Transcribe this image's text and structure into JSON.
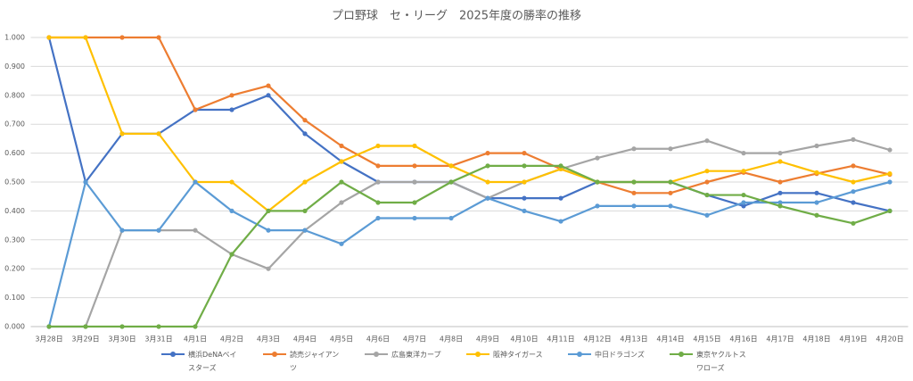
{
  "chart_data": {
    "type": "line",
    "title": "プロ野球　セ・リーグ　2025年度の勝率の推移",
    "categories": [
      "3月28日",
      "3月29日",
      "3月30日",
      "3月31日",
      "4月1日",
      "4月2日",
      "4月3日",
      "4月4日",
      "4月5日",
      "4月6日",
      "4月7日",
      "4月8日",
      "4月9日",
      "4月10日",
      "4月11日",
      "4月12日",
      "4月13日",
      "4月14日",
      "4月15日",
      "4月16日",
      "4月17日",
      "4月18日",
      "4月19日",
      "4月20日"
    ],
    "series": [
      {
        "name": "横浜DeNAベイスターズ",
        "color": "#4472c4",
        "values": [
          1.0,
          0.5,
          0.667,
          0.667,
          0.75,
          0.75,
          0.8,
          0.667,
          0.571,
          0.5,
          0.5,
          0.5,
          0.444,
          0.444,
          0.444,
          0.5,
          0.5,
          0.5,
          0.455,
          0.417,
          0.462,
          0.462,
          0.429,
          0.4
        ]
      },
      {
        "name": "読売ジャイアンツ",
        "color": "#ed7d31",
        "values": [
          1.0,
          1.0,
          1.0,
          1.0,
          0.75,
          0.8,
          0.833,
          0.714,
          0.625,
          0.556,
          0.556,
          0.556,
          0.6,
          0.6,
          0.545,
          0.5,
          0.462,
          0.462,
          0.5,
          0.533,
          0.5,
          0.529,
          0.556,
          0.526
        ]
      },
      {
        "name": "広島東洋カープ",
        "color": "#a5a5a5",
        "values": [
          0,
          0,
          0.333,
          0.333,
          0.333,
          0.25,
          0.2,
          0.333,
          0.429,
          0.5,
          0.5,
          0.5,
          0.444,
          0.5,
          0.545,
          0.583,
          0.615,
          0.615,
          0.643,
          0.6,
          0.6,
          0.625,
          0.647,
          0.611
        ]
      },
      {
        "name": "阪神タイガース",
        "color": "#ffc000",
        "values": [
          1.0,
          1.0,
          0.667,
          0.667,
          0.5,
          0.5,
          0.4,
          0.5,
          0.571,
          0.625,
          0.625,
          0.556,
          0.5,
          0.5,
          0.545,
          0.5,
          0.5,
          0.5,
          0.538,
          0.538,
          0.571,
          0.533,
          0.5,
          0.529
        ]
      },
      {
        "name": "中日ドラゴンズ",
        "color": "#5b9bd5",
        "values": [
          0,
          0.5,
          0.333,
          0.333,
          0.5,
          0.4,
          0.333,
          0.333,
          0.286,
          0.375,
          0.375,
          0.375,
          0.444,
          0.4,
          0.364,
          0.417,
          0.417,
          0.417,
          0.385,
          0.429,
          0.429,
          0.429,
          0.467,
          0.5
        ]
      },
      {
        "name": "東京ヤクルトスワローズ",
        "color": "#70ad47",
        "values": [
          0,
          0,
          0,
          0,
          0,
          0.25,
          0.4,
          0.4,
          0.5,
          0.429,
          0.429,
          0.5,
          0.556,
          0.556,
          0.556,
          0.5,
          0.5,
          0.5,
          0.455,
          0.455,
          0.417,
          0.385,
          0.357,
          0.4
        ]
      }
    ],
    "ylim": [
      0,
      1
    ],
    "yticks": [
      {
        "value": 0,
        "label": "0.000"
      },
      {
        "value": 0.1,
        "label": "0.100"
      },
      {
        "value": 0.2,
        "label": "0.200"
      },
      {
        "value": 0.3,
        "label": "0.300"
      },
      {
        "value": 0.4,
        "label": "0.400"
      },
      {
        "value": 0.5,
        "label": "0.500"
      },
      {
        "value": 0.6,
        "label": "0.600"
      },
      {
        "value": 0.7,
        "label": "0.700"
      },
      {
        "value": 0.8,
        "label": "0.800"
      },
      {
        "value": 0.9,
        "label": "0.900"
      },
      {
        "value": 1,
        "label": "1.000"
      }
    ],
    "grid": true
  }
}
